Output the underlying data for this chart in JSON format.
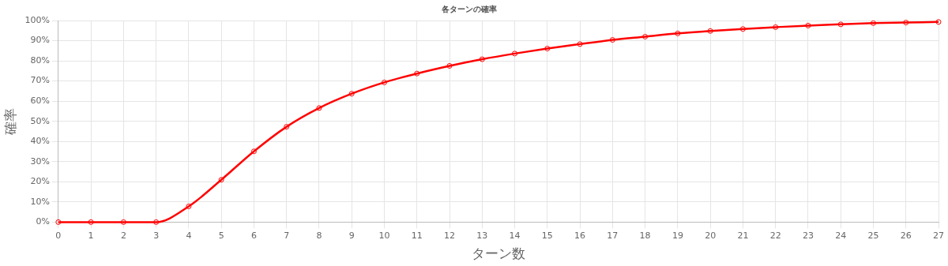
{
  "chart_data": {
    "type": "line",
    "title": "各ターンの確率",
    "xlabel": "ターン数",
    "ylabel": "確率",
    "x": [
      0,
      1,
      2,
      3,
      4,
      5,
      6,
      7,
      8,
      9,
      10,
      11,
      12,
      13,
      14,
      15,
      16,
      17,
      18,
      19,
      20,
      21,
      22,
      23,
      24,
      25,
      26,
      27
    ],
    "series": [
      {
        "color": "#ff0000",
        "values": [
          0,
          0,
          0,
          0,
          7.8,
          21,
          35.1,
          47.3,
          56.6,
          63.7,
          69.3,
          73.7,
          77.5,
          80.8,
          83.6,
          86.1,
          88.3,
          90.4,
          92,
          93.6,
          94.8,
          95.8,
          96.7,
          97.5,
          98.1,
          98.7,
          99,
          99.3
        ]
      }
    ],
    "xlim": [
      0,
      27
    ],
    "xticks": [
      0,
      1,
      2,
      3,
      4,
      5,
      6,
      7,
      8,
      9,
      10,
      11,
      12,
      13,
      14,
      15,
      16,
      17,
      18,
      19,
      20,
      21,
      22,
      23,
      24,
      25,
      26,
      27
    ],
    "ylim": [
      0,
      100
    ],
    "yticks": [
      {
        "value": 0,
        "label": "0%"
      },
      {
        "value": 10,
        "label": "10%"
      },
      {
        "value": 20,
        "label": "20%"
      },
      {
        "value": 30,
        "label": "30%"
      },
      {
        "value": 40,
        "label": "40%"
      },
      {
        "value": 50,
        "label": "50%"
      },
      {
        "value": 60,
        "label": "60%"
      },
      {
        "value": 70,
        "label": "70%"
      },
      {
        "value": 80,
        "label": "80%"
      },
      {
        "value": 90,
        "label": "90%"
      },
      {
        "value": 100,
        "label": "100%"
      }
    ],
    "grid": true,
    "legend": false,
    "marker": "circle",
    "line_style": "solid"
  }
}
